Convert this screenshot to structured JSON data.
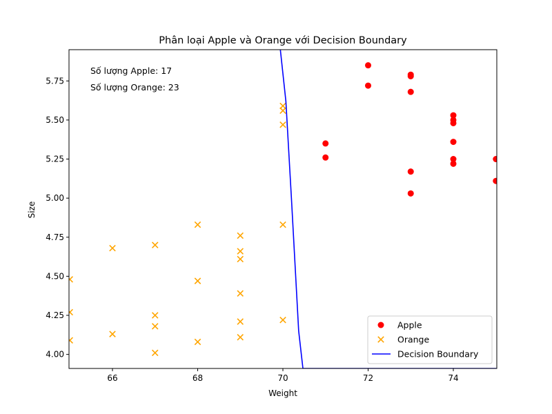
{
  "chart_data": {
    "type": "scatter",
    "title": "Phân loại Apple và Orange với Decision Boundary",
    "xlabel": "Weight",
    "ylabel": "Size",
    "xlim": [
      64.98,
      75.02
    ],
    "ylim": [
      3.91,
      5.95
    ],
    "x_ticks": [
      66,
      68,
      70,
      72,
      74
    ],
    "x_tick_labels": [
      "66",
      "68",
      "70",
      "72",
      "74"
    ],
    "y_ticks": [
      4.0,
      4.25,
      4.5,
      4.75,
      5.0,
      5.25,
      5.5,
      5.75
    ],
    "y_tick_labels": [
      "4.00",
      "4.25",
      "4.50",
      "4.75",
      "5.00",
      "5.25",
      "5.50",
      "5.75"
    ],
    "grid": false,
    "legend_position": "lower right",
    "annotations": [
      "Số lượng Apple: 17",
      "Số lượng Orange: 23"
    ],
    "series": [
      {
        "name": "Apple",
        "kind": "scatter",
        "marker": "circle",
        "color": "#ff0000",
        "points": [
          [
            72,
            5.85
          ],
          [
            72,
            5.72
          ],
          [
            73,
            5.79
          ],
          [
            73,
            5.78
          ],
          [
            73,
            5.68
          ],
          [
            71,
            5.35
          ],
          [
            71,
            5.26
          ],
          [
            73,
            5.17
          ],
          [
            73,
            5.03
          ],
          [
            74,
            5.53
          ],
          [
            74,
            5.5
          ],
          [
            74,
            5.48
          ],
          [
            74,
            5.36
          ],
          [
            74,
            5.25
          ],
          [
            74,
            5.22
          ],
          [
            75,
            5.25
          ],
          [
            75,
            5.11
          ]
        ]
      },
      {
        "name": "Orange",
        "kind": "scatter",
        "marker": "x",
        "color": "#ffa500",
        "points": [
          [
            70,
            5.59
          ],
          [
            70,
            5.56
          ],
          [
            70,
            5.47
          ],
          [
            70,
            4.83
          ],
          [
            70,
            4.22
          ],
          [
            68,
            4.83
          ],
          [
            69,
            4.76
          ],
          [
            69,
            4.66
          ],
          [
            69,
            4.61
          ],
          [
            69,
            4.39
          ],
          [
            69,
            4.21
          ],
          [
            69,
            4.11
          ],
          [
            66,
            4.68
          ],
          [
            67,
            4.7
          ],
          [
            65,
            4.48
          ],
          [
            68,
            4.47
          ],
          [
            65,
            4.27
          ],
          [
            67,
            4.25
          ],
          [
            67,
            4.18
          ],
          [
            66,
            4.13
          ],
          [
            65,
            4.09
          ],
          [
            68,
            4.08
          ],
          [
            67,
            4.01
          ]
        ]
      },
      {
        "name": "Decision Boundary",
        "kind": "line",
        "color": "#0000ff",
        "points": [
          [
            69.94,
            5.95
          ],
          [
            70.07,
            5.62
          ],
          [
            70.2,
            5.0
          ],
          [
            70.3,
            4.5
          ],
          [
            70.37,
            4.15
          ],
          [
            70.47,
            3.91
          ],
          [
            75.02,
            3.91
          ]
        ]
      }
    ]
  }
}
